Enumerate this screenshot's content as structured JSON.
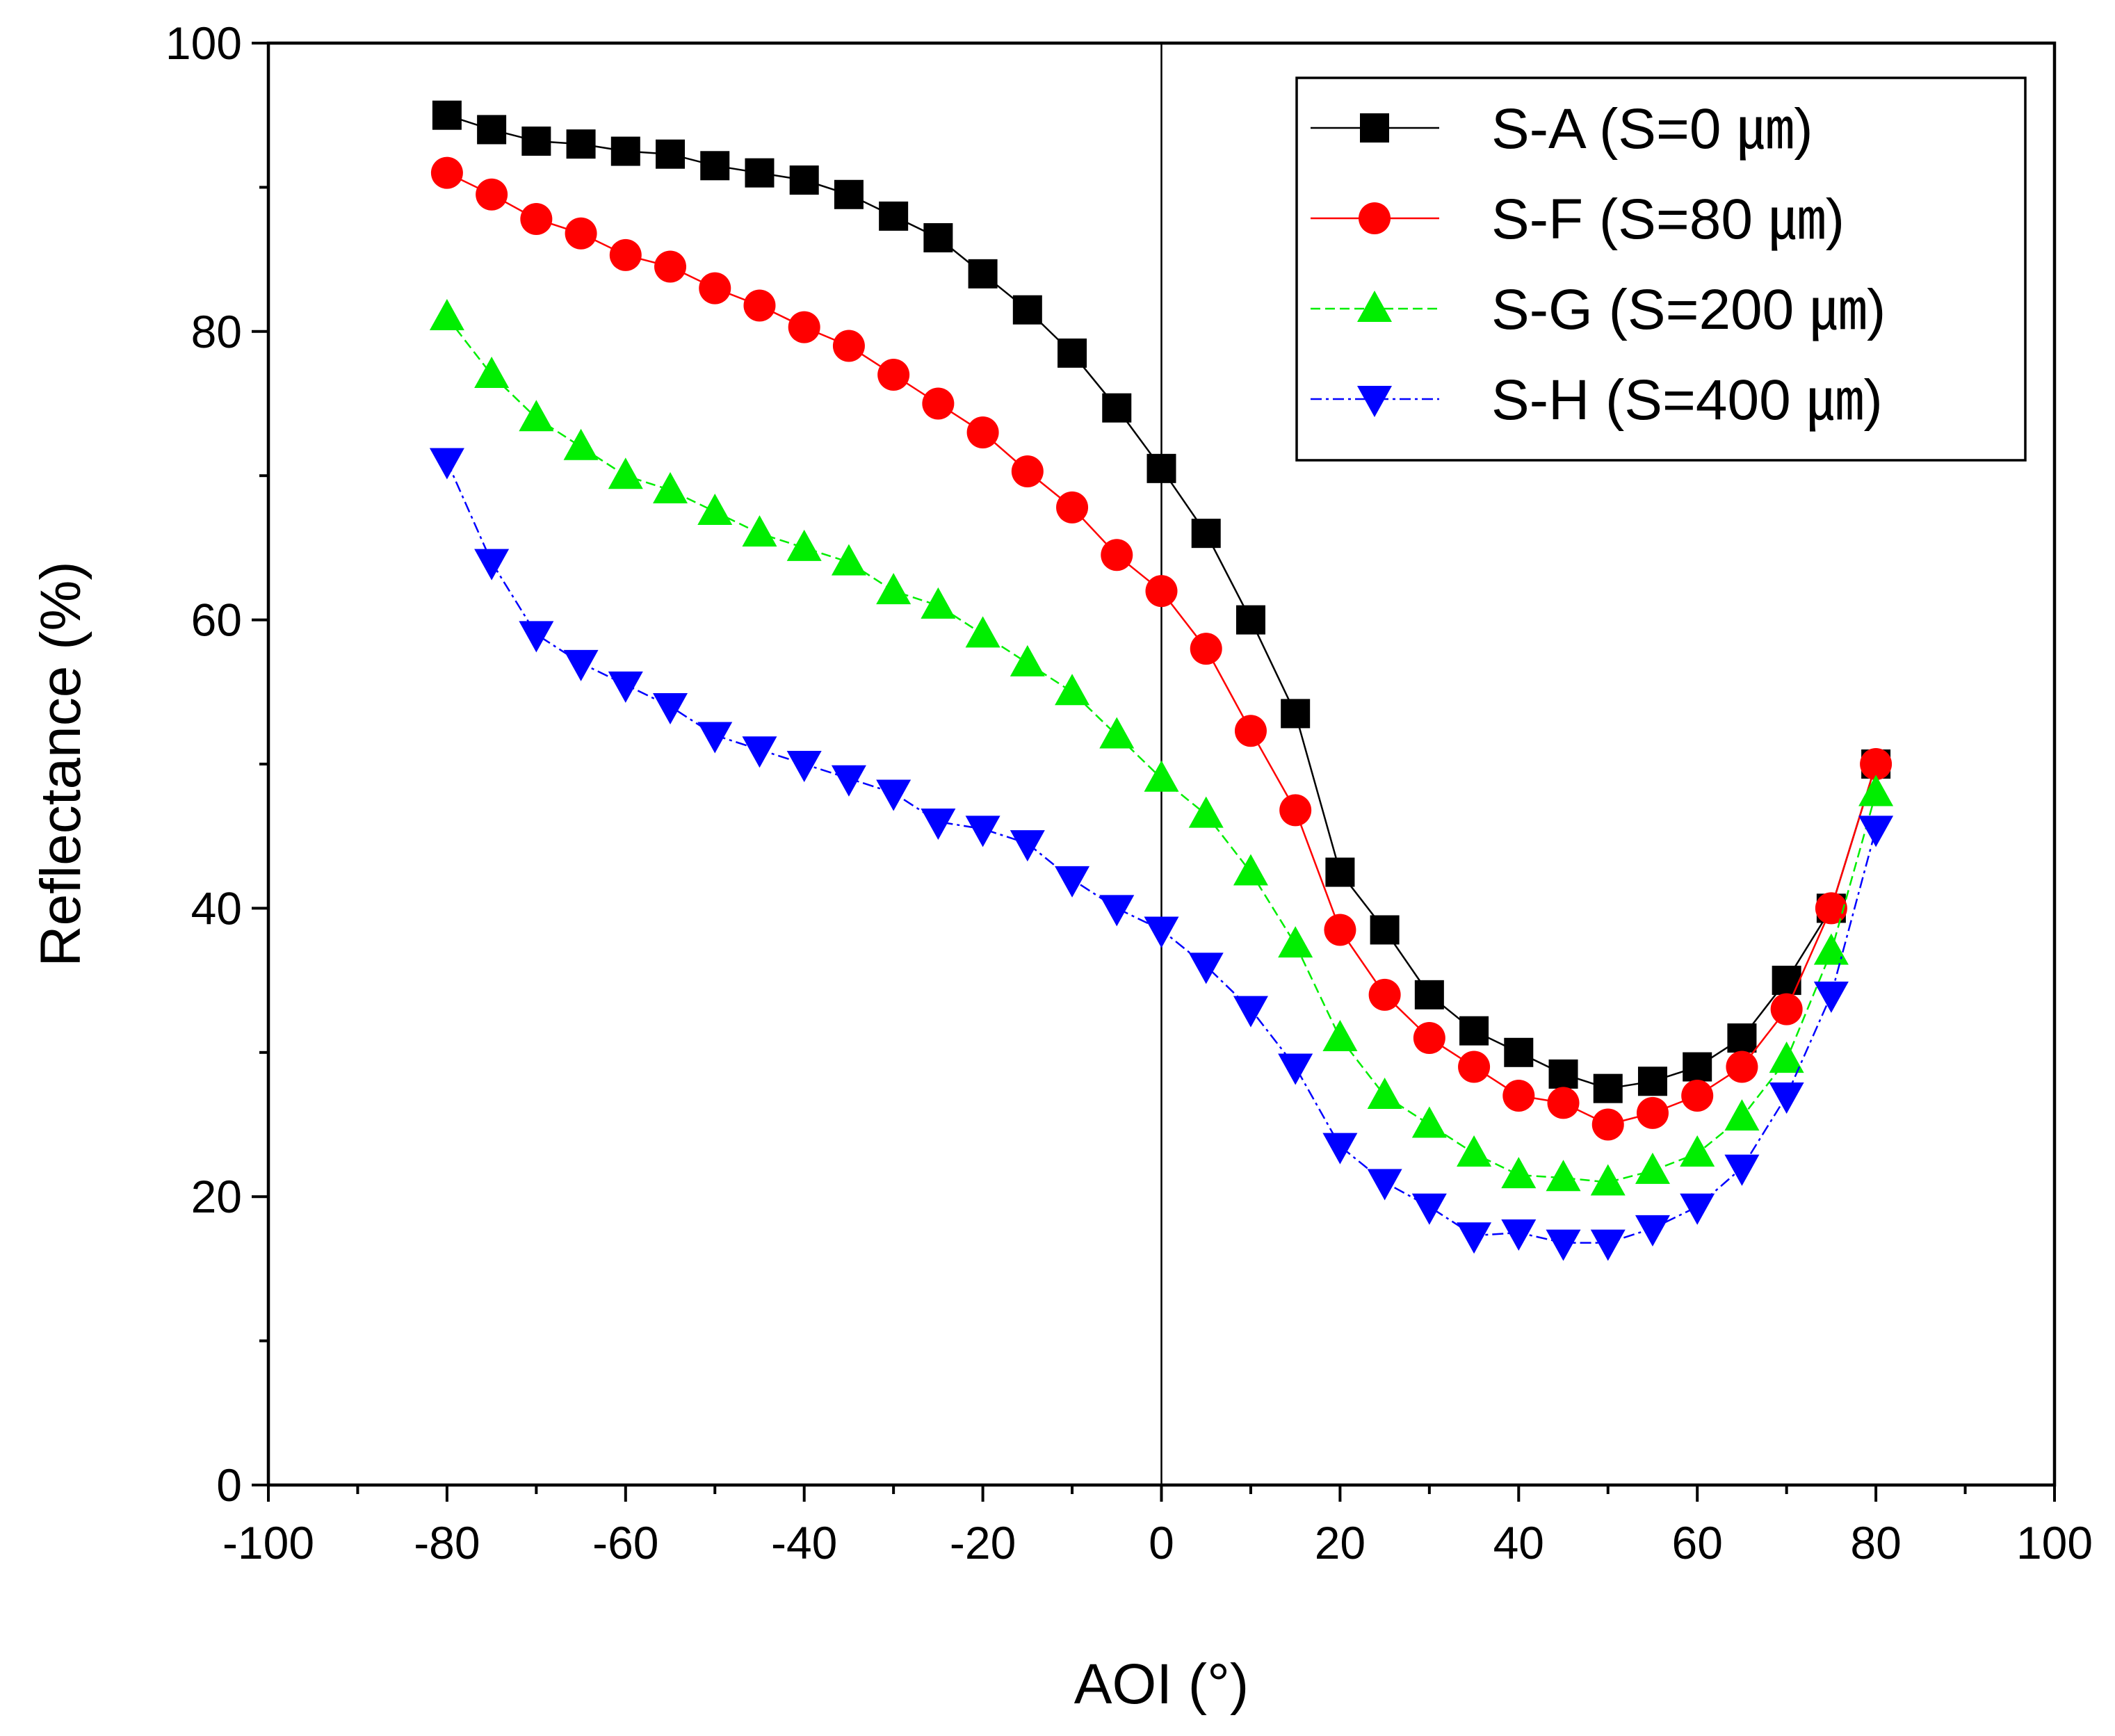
{
  "chart_data": {
    "type": "scatter",
    "title": "",
    "xlabel": "AOI (°)",
    "ylabel": "Reflectance (%)",
    "xlim": [
      -100,
      100
    ],
    "ylim": [
      0,
      100
    ],
    "x_ticks": [
      "-100",
      "-80",
      "-60",
      "-40",
      "-20",
      "0",
      "20",
      "40",
      "60",
      "80",
      "100"
    ],
    "y_ticks": [
      "0",
      "20",
      "40",
      "60",
      "80",
      "100"
    ],
    "vertical_line_at_x": 0,
    "grid": false,
    "legend_position": "top-right",
    "x": [
      -80,
      -75,
      -70,
      -65,
      -60,
      -55,
      -50,
      -45,
      -40,
      -35,
      -30,
      -25,
      -20,
      -15,
      -10,
      -5,
      0,
      5,
      10,
      15,
      20,
      25,
      30,
      35,
      40,
      45,
      50,
      55,
      60,
      65,
      70,
      75,
      80
    ],
    "series": [
      {
        "name": "S-A (S=0 ㎛)",
        "color": "#000000",
        "marker": "square",
        "line_style": "solid",
        "values": [
          95,
          94,
          93.2,
          93,
          92.5,
          92.3,
          91.5,
          91,
          90.5,
          89.5,
          88,
          86.5,
          84,
          81.5,
          78.5,
          74.7,
          70.5,
          66,
          60,
          53.5,
          42.5,
          38.5,
          34,
          31.5,
          30,
          28.5,
          27.5,
          28,
          29,
          31,
          35,
          40,
          50
        ]
      },
      {
        "name": "S-F (S=80 ㎛)",
        "color": "#ff0000",
        "marker": "circle",
        "line_style": "solid",
        "values": [
          91,
          89.5,
          87.8,
          86.8,
          85.3,
          84.5,
          83,
          81.8,
          80.3,
          79,
          77,
          75,
          73,
          70.3,
          67.8,
          64.5,
          62,
          58,
          52.3,
          46.8,
          38.5,
          34,
          31,
          29,
          27,
          26.5,
          25,
          25.8,
          27,
          29,
          33,
          40,
          50
        ]
      },
      {
        "name": "S-G (S=200 ㎛)",
        "color": "#00ee00",
        "marker": "triangle-up",
        "line_style": "dashed",
        "values": [
          81,
          77,
          74,
          72,
          70,
          69,
          67.5,
          66,
          65,
          64,
          62,
          61,
          59,
          57,
          55,
          52,
          49,
          46.5,
          42.5,
          37.5,
          31,
          27,
          25,
          23,
          21.5,
          21.3,
          21,
          21.8,
          23,
          25.5,
          29.5,
          37,
          48
        ]
      },
      {
        "name": "S-H (S=400 ㎛)",
        "color": "#0000ff",
        "marker": "triangle-down",
        "line_style": "dashdot",
        "values": [
          71,
          64,
          59,
          57,
          55.5,
          54,
          52,
          51,
          50,
          49,
          48,
          46,
          45.5,
          44.5,
          42,
          40,
          38.5,
          36,
          33,
          29,
          23.5,
          21,
          19.3,
          17.3,
          17.5,
          16.8,
          16.8,
          17.8,
          19.3,
          22,
          27,
          34,
          45.5
        ]
      }
    ]
  }
}
